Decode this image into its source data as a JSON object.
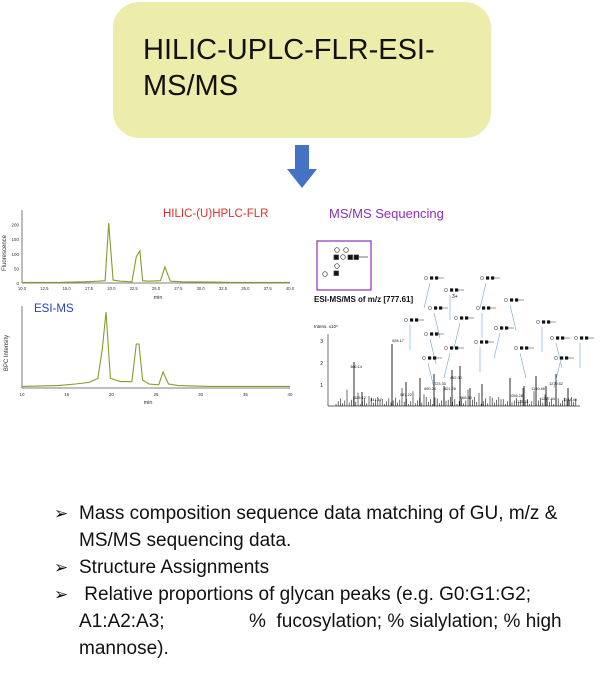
{
  "header": {
    "title_line1": "HILIC-UPLC-FLR-ESI-",
    "title_line2": "MS/MS"
  },
  "flr_panel": {
    "label": "HILIC-(U)HPLC-FLR",
    "ylabel": "Fluorescence",
    "xlabel": "min",
    "yticks": [
      "200",
      "150",
      "100",
      "50",
      "0"
    ],
    "xticks": [
      "10.0",
      "12.5",
      "15.0",
      "17.5",
      "20.0",
      "22.5",
      "25.0",
      "27.5",
      "30.0",
      "32.5",
      "35.0",
      "37.5",
      "40.0"
    ],
    "label_color": "#e0302a"
  },
  "ms_panel": {
    "label": "ESI-MS",
    "ylabel": "BPC Intensity",
    "xlabel": "min",
    "xticks": [
      "10",
      "15",
      "20",
      "25",
      "30",
      "35",
      "40"
    ],
    "label_color": "#2a3fc7"
  },
  "msms_panel": {
    "title": "MS/MS Sequencing",
    "spectrum_label": "ESI-MS/MS of m/z [777.61]",
    "charge": "3+",
    "yaxis_label": "Intens. x10⁶",
    "yticks": [
      "3",
      "2",
      "1"
    ],
    "peak_labels": [
      "366.14",
      "528.17",
      "325.12",
      "441.17",
      "587.22",
      "690.25",
      "723.30",
      "821.28",
      "852.30",
      "968.30",
      "1055.28",
      "1125.31",
      "1150.48",
      "1217.44",
      "1279.52",
      "1344.49"
    ],
    "title_color": "#8b2fb5",
    "box_color": "#9b3fb8"
  },
  "bullets": [
    "Mass composition sequence data matching of GU, m/z & MS/MS sequencing data.",
    "Structure Assignments",
    " Relative proportions of glycan peaks (e.g. G0:G1:G2; A1:A2:A3;                %  fucosylation; % sialylation; % high mannose)."
  ],
  "colors": {
    "title_box": "#ecedab",
    "arrow": "#4472c4",
    "trace": "#8a9a2a"
  },
  "chart_data": [
    {
      "type": "line",
      "title": "HILIC-(U)HPLC-FLR",
      "ylabel": "Fluorescence",
      "xlabel": "min",
      "xlim": [
        10,
        40
      ],
      "ylim": [
        0,
        250
      ],
      "series": [
        {
          "x": [
            10,
            14,
            17,
            18.5,
            19.3,
            19.7,
            20.2,
            21,
            22.3,
            22.8,
            23.2,
            23.5,
            24.2,
            25.5,
            26.0,
            26.6,
            28,
            31,
            34,
            37,
            40
          ],
          "values": [
            2,
            2,
            4,
            6,
            8,
            205,
            10,
            6,
            4,
            90,
            110,
            8,
            6,
            8,
            55,
            6,
            4,
            3,
            2,
            2,
            2
          ]
        }
      ]
    },
    {
      "type": "line",
      "title": "ESI-MS",
      "ylabel": "BPC Intensity",
      "xlabel": "min",
      "xlim": [
        10,
        40
      ],
      "series": [
        {
          "x": [
            10,
            14,
            16,
            17.5,
            18.5,
            19.0,
            19.4,
            19.9,
            21,
            22.3,
            22.8,
            23.1,
            23.5,
            24.2,
            25.3,
            25.8,
            26.4,
            27.5,
            31,
            35,
            40
          ],
          "values": [
            0.02,
            0.03,
            0.05,
            0.07,
            0.12,
            0.5,
            0.95,
            0.12,
            0.08,
            0.08,
            0.55,
            0.55,
            0.1,
            0.05,
            0.04,
            0.2,
            0.05,
            0.03,
            0.02,
            0.02,
            0.02
          ]
        }
      ]
    }
  ]
}
